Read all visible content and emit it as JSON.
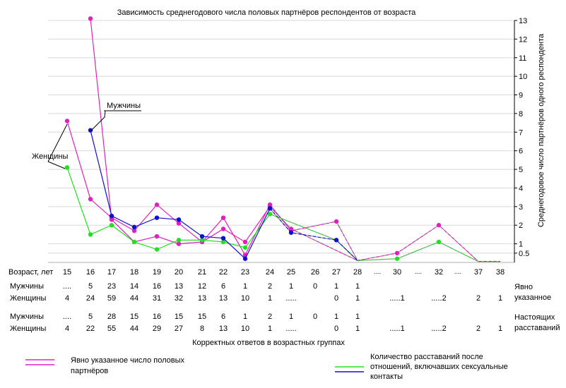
{
  "chart_data": {
    "type": "line",
    "title": "Зависимость среднегодового числа половых партнёров респондентов от возраста",
    "ylabel": "Среднегодовое число партнёров одного респондента",
    "xlabel": "Корректных ответов в возрастных группах",
    "ylim": [
      0,
      13
    ],
    "y_ticks": [
      "0.5",
      "1",
      "2",
      "3",
      "4",
      "5",
      "6",
      "7",
      "8",
      "9",
      "10",
      "11",
      "12",
      "13"
    ],
    "x_row_label": "Возраст,  лет",
    "categories": [
      "15",
      "16",
      "17",
      "18",
      "19",
      "20",
      "21",
      "22",
      "23",
      "24",
      "25",
      "26",
      "27",
      "28",
      "30",
      "32",
      "37",
      "38"
    ],
    "x_dots": "....",
    "series": [
      {
        "name": "Женщины — явно указанное число партнёров",
        "color": "#e020c0",
        "style": "solid",
        "points": [
          [
            15,
            7.6
          ],
          [
            16,
            3.4
          ],
          [
            17,
            2.4
          ],
          [
            18,
            1.7
          ],
          [
            19,
            3.1
          ],
          [
            20,
            2.1
          ],
          [
            21,
            1.1
          ],
          [
            22,
            2.4
          ],
          [
            23,
            0.4
          ],
          [
            24,
            3.1
          ]
        ]
      },
      {
        "name": "Женщины — явно указанное число партнёров (пунктир)",
        "color": "#e020c0",
        "style": "dashed",
        "points": [
          [
            24,
            3.1
          ],
          [
            25,
            1.7
          ],
          [
            27,
            2.2
          ],
          [
            28,
            0.1
          ],
          [
            30,
            0.5
          ],
          [
            32,
            2.0
          ],
          [
            37,
            0.05
          ],
          [
            38,
            0.05
          ]
        ]
      },
      {
        "name": "Мужчины — явно указанное число партнёров",
        "color": "#e020c0",
        "style": "solid",
        "points": [
          [
            16,
            13.1
          ],
          [
            17,
            2.3
          ],
          [
            18,
            1.1
          ],
          [
            19,
            1.4
          ],
          [
            20,
            1.0
          ],
          [
            21,
            1.1
          ],
          [
            22,
            1.8
          ],
          [
            23,
            1.1
          ],
          [
            24,
            3.0
          ]
        ]
      },
      {
        "name": "Мужчины — явно указанное число партнёров (пунктир)",
        "color": "#e020c0",
        "style": "dashed",
        "points": [
          [
            24,
            3.0
          ],
          [
            25,
            1.8
          ],
          [
            28,
            0.1
          ]
        ]
      },
      {
        "name": "Женщины — количество расставаний",
        "color": "#20e020",
        "style": "solid",
        "points": [
          [
            15,
            5.1
          ],
          [
            16,
            1.5
          ],
          [
            17,
            2.0
          ],
          [
            18,
            1.1
          ],
          [
            19,
            0.7
          ],
          [
            20,
            1.2
          ],
          [
            21,
            1.2
          ],
          [
            22,
            1.1
          ],
          [
            23,
            0.8
          ],
          [
            24,
            2.6
          ]
        ]
      },
      {
        "name": "Женщины — количество расставаний (пунктир)",
        "color": "#20e020",
        "style": "dashed",
        "points": [
          [
            24,
            2.6
          ],
          [
            27,
            1.2
          ],
          [
            28,
            0.1
          ],
          [
            30,
            0.2
          ],
          [
            32,
            1.1
          ],
          [
            37,
            0.05
          ],
          [
            38,
            0.05
          ]
        ]
      },
      {
        "name": "Мужчины — количество расставаний",
        "color": "#1010d0",
        "style": "solid",
        "points": [
          [
            16,
            7.1
          ],
          [
            17,
            2.5
          ],
          [
            18,
            1.9
          ],
          [
            19,
            2.4
          ],
          [
            20,
            2.3
          ],
          [
            21,
            1.4
          ],
          [
            22,
            1.3
          ],
          [
            23,
            0.2
          ],
          [
            24,
            2.9
          ]
        ]
      },
      {
        "name": "Мужчины — количество расставаний (пунктир)",
        "color": "#1010d0",
        "style": "dashed",
        "points": [
          [
            24,
            2.9
          ],
          [
            25,
            1.6
          ],
          [
            27,
            1.2
          ],
          [
            28,
            0.1
          ]
        ]
      }
    ],
    "annotations": [
      "Мужчины",
      "Женщины"
    ],
    "table": {
      "groups": [
        {
          "label": "Явно указанное",
          "rows": [
            {
              "label": "Мужчины",
              "values": [
                "....",
                "5",
                "23",
                "14",
                "16",
                "13",
                "12",
                "6",
                "1",
                "2",
                "1",
                "0",
                "1",
                "1",
                "",
                "",
                "",
                ""
              ]
            },
            {
              "label": "Женщины",
              "values": [
                "4",
                "24",
                "59",
                "44",
                "31",
                "32",
                "13",
                "13",
                "10",
                "1",
                ".....",
                "",
                "0",
                "1",
                ".....1",
                ".....2",
                "2",
                "1"
              ]
            }
          ]
        },
        {
          "label": "Настоящих расставаний",
          "rows": [
            {
              "label": "Мужчины",
              "values": [
                "....",
                "5",
                "28",
                "15",
                "16",
                "15",
                "15",
                "6",
                "1",
                "2",
                "1",
                "0",
                "1",
                "1",
                "",
                "",
                "",
                ""
              ]
            },
            {
              "label": "Женщины",
              "values": [
                "4",
                "22",
                "55",
                "44",
                "29",
                "27",
                "8",
                "13",
                "10",
                "1",
                ".....",
                "",
                "0",
                "1",
                ".....1",
                ".....2",
                "2",
                "1"
              ]
            }
          ]
        }
      ]
    },
    "legend": [
      {
        "label": "Явно указанное число половых партнёров",
        "colors": [
          "#e020c0",
          "#e020c0"
        ]
      },
      {
        "label": "Количество расставаний после отношений, включавших сексуальные контакты",
        "colors": [
          "#20e020",
          "#1010d0"
        ]
      }
    ]
  }
}
